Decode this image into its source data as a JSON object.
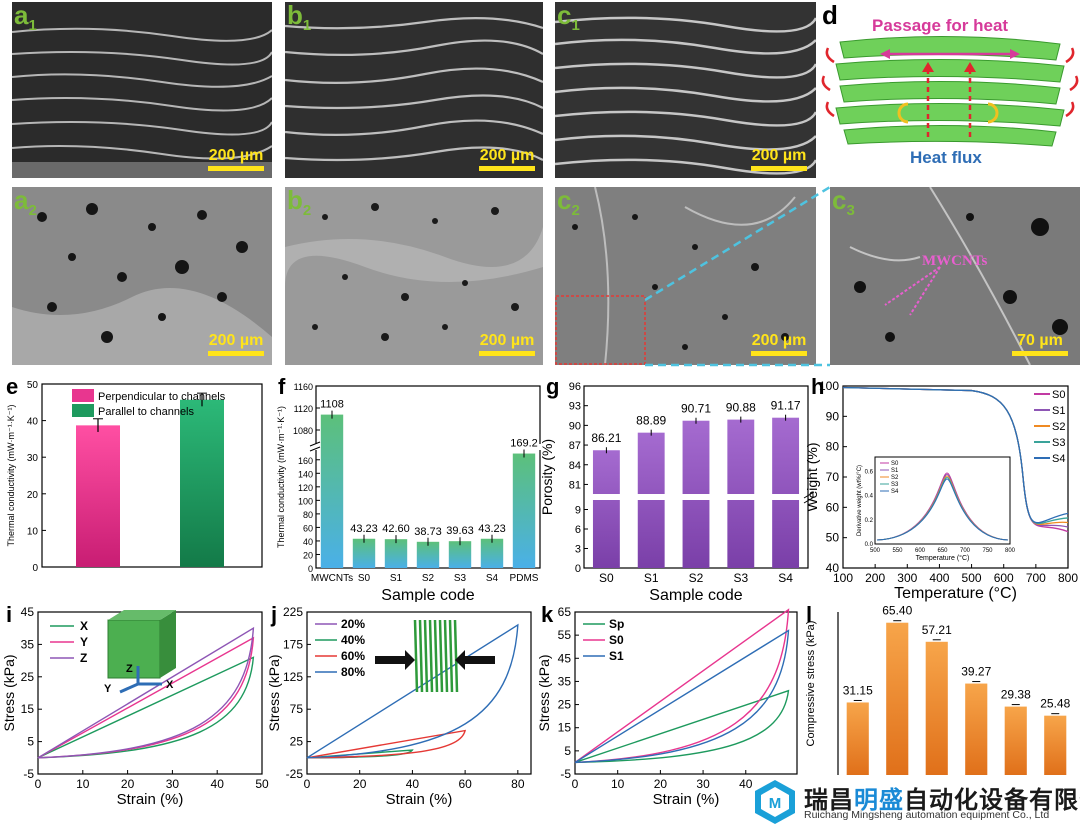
{
  "panels": {
    "a1": {
      "label": "a",
      "sub": "1",
      "scale": "200 µm"
    },
    "b1": {
      "label": "b",
      "sub": "1",
      "scale": "200 µm"
    },
    "c1": {
      "label": "c",
      "sub": "1",
      "scale": "200 µm"
    },
    "d": {
      "label": "d",
      "passage": "Passage for heat",
      "flux": "Heat flux"
    },
    "a2": {
      "label": "a",
      "sub": "2",
      "scale": "200 µm"
    },
    "b2": {
      "label": "b",
      "sub": "2",
      "scale": "200 µm"
    },
    "c2": {
      "label": "c",
      "sub": "2",
      "scale": "200 µm"
    },
    "c3": {
      "label": "c",
      "sub": "3",
      "scale": "70 µm",
      "annotation": "MWCNTs"
    }
  },
  "colors": {
    "pink": "#e8368f",
    "green": "#1e9a5e",
    "purple": "#8e56b5",
    "teal": "#4bb6a6",
    "orange": "#ef8a23"
  },
  "chart_data": [
    {
      "id": "e",
      "type": "bar",
      "label": "e",
      "ylabel": "Thermal conductivity (mW·m⁻¹·K⁻¹)",
      "ylim": [
        0,
        50
      ],
      "yticks": [
        "0",
        "10",
        "20",
        "30",
        "40",
        "50"
      ],
      "legend": [
        "Perpendicular to channels",
        "Parallel to channels"
      ],
      "values": [
        38.7,
        45.7
      ],
      "errors": [
        1.8,
        1.8
      ]
    },
    {
      "id": "f",
      "type": "bar",
      "label": "f",
      "ylabel": "Thermal conductivity (mW·m⁻¹·K⁻¹)",
      "xlabel": "Sample code",
      "categories": [
        "MWCNTs",
        "S0",
        "S1",
        "S2",
        "S3",
        "S4",
        "PDMS"
      ],
      "values": [
        1108,
        43.23,
        42.6,
        38.73,
        39.63,
        43.23,
        169.2
      ],
      "value_labels": [
        "1108",
        "43.23",
        "42.60",
        "38.73",
        "39.63",
        "43.23",
        "169.2"
      ],
      "yticks_low": [
        "0",
        "20",
        "40",
        "60",
        "80",
        "100",
        "120",
        "140",
        "160"
      ],
      "yticks_high": [
        "1080",
        "1120",
        "1160"
      ],
      "broken_axis": [
        170,
        1060
      ]
    },
    {
      "id": "g",
      "type": "bar",
      "label": "g",
      "ylabel": "Porosity (%)",
      "xlabel": "Sample code",
      "categories": [
        "S0",
        "S1",
        "S2",
        "S3",
        "S4"
      ],
      "values": [
        86.21,
        88.89,
        90.71,
        90.88,
        91.17
      ],
      "value_labels": [
        "86.21",
        "88.89",
        "90.71",
        "90.88",
        "91.17"
      ],
      "yticks_low": [
        "0",
        "3",
        "6",
        "9"
      ],
      "yticks_high": [
        "81",
        "84",
        "87",
        "90",
        "93",
        "96"
      ],
      "broken_axis": [
        10,
        80
      ]
    },
    {
      "id": "h",
      "type": "line",
      "label": "h",
      "xlabel": "Temperature (°C)",
      "ylabel": "Weight (%)",
      "xlim": [
        100,
        800
      ],
      "ylim": [
        40,
        100
      ],
      "xticks": [
        "100",
        "200",
        "300",
        "400",
        "500",
        "600",
        "700",
        "800"
      ],
      "yticks": [
        "40",
        "50",
        "60",
        "70",
        "80",
        "90",
        "100"
      ],
      "series": [
        {
          "name": "S0",
          "color": "#c23aa3"
        },
        {
          "name": "S1",
          "color": "#8e56b5"
        },
        {
          "name": "S2",
          "color": "#ef8a23"
        },
        {
          "name": "S3",
          "color": "#3aa39a"
        },
        {
          "name": "S4",
          "color": "#2e6db5"
        }
      ],
      "inset": {
        "xlabel": "Temperature (°C)",
        "ylabel": "Derivative weight (wt%/°C)",
        "xticks": [
          "500",
          "550",
          "600",
          "650",
          "700",
          "750",
          "800"
        ],
        "yticks": [
          "0.0",
          "0.2",
          "0.4",
          "0.6"
        ]
      }
    },
    {
      "id": "i",
      "type": "line",
      "label": "i",
      "xlabel": "Strain (%)",
      "ylabel": "Stress (kPa)",
      "xlim": [
        0,
        50
      ],
      "ylim": [
        -5,
        45
      ],
      "xticks": [
        "0",
        "10",
        "20",
        "30",
        "40",
        "50"
      ],
      "yticks": [
        "-5",
        "5",
        "15",
        "25",
        "35",
        "45"
      ],
      "series": [
        {
          "name": "X",
          "color": "#1e9a5e",
          "peak": 31
        },
        {
          "name": "Y",
          "color": "#e8368f",
          "peak": 37
        },
        {
          "name": "Z",
          "color": "#8e56b5",
          "peak": 40
        }
      ],
      "axes_labels": [
        "Z",
        "Y",
        "X"
      ]
    },
    {
      "id": "j",
      "type": "line",
      "label": "j",
      "xlabel": "Strain (%)",
      "ylabel": "Stress (kPa)",
      "xlim": [
        0,
        80
      ],
      "ylim": [
        -25,
        225
      ],
      "xticks": [
        "0",
        "20",
        "40",
        "60",
        "80"
      ],
      "yticks": [
        "-25",
        "25",
        "75",
        "125",
        "175",
        "225"
      ],
      "series": [
        {
          "name": "20%",
          "color": "#8e56b5",
          "peak": 2
        },
        {
          "name": "40%",
          "color": "#1e9a5e",
          "peak": 12
        },
        {
          "name": "60%",
          "color": "#e53935",
          "peak": 42
        },
        {
          "name": "80%",
          "color": "#2e6db5",
          "peak": 205
        }
      ]
    },
    {
      "id": "k",
      "type": "line",
      "label": "k",
      "xlabel": "Strain (%)",
      "ylabel": "Stress (kPa)",
      "xlim": [
        0,
        50
      ],
      "ylim": [
        -5,
        65
      ],
      "xticks": [
        "0",
        "10",
        "20",
        "30",
        "40"
      ],
      "yticks": [
        "-5",
        "5",
        "15",
        "25",
        "35",
        "45",
        "55",
        "65"
      ],
      "series": [
        {
          "name": "Sp",
          "color": "#1e9a5e",
          "peak": 31
        },
        {
          "name": "S0",
          "color": "#e8368f",
          "peak": 66
        },
        {
          "name": "S1",
          "color": "#2e6db5",
          "peak": 57
        }
      ]
    },
    {
      "id": "l",
      "type": "bar",
      "label": "l",
      "ylabel": "Compressive stress (kPa)",
      "ylim": [
        0,
        70
      ],
      "values": [
        31.15,
        65.4,
        57.21,
        39.27,
        29.38,
        25.48
      ],
      "value_labels": [
        "31.15",
        "65.40",
        "57.21",
        "39.27",
        "29.38",
        "25.48"
      ]
    }
  ],
  "watermark": {
    "company": "瑞昌明盛自动化设备有限公司",
    "company_pre": "瑞昌",
    "company_hl": "明盛",
    "company_post": "自动化设备有限公司",
    "english": "Ruichang Mingsheng automation equipment Co., Ltd"
  }
}
